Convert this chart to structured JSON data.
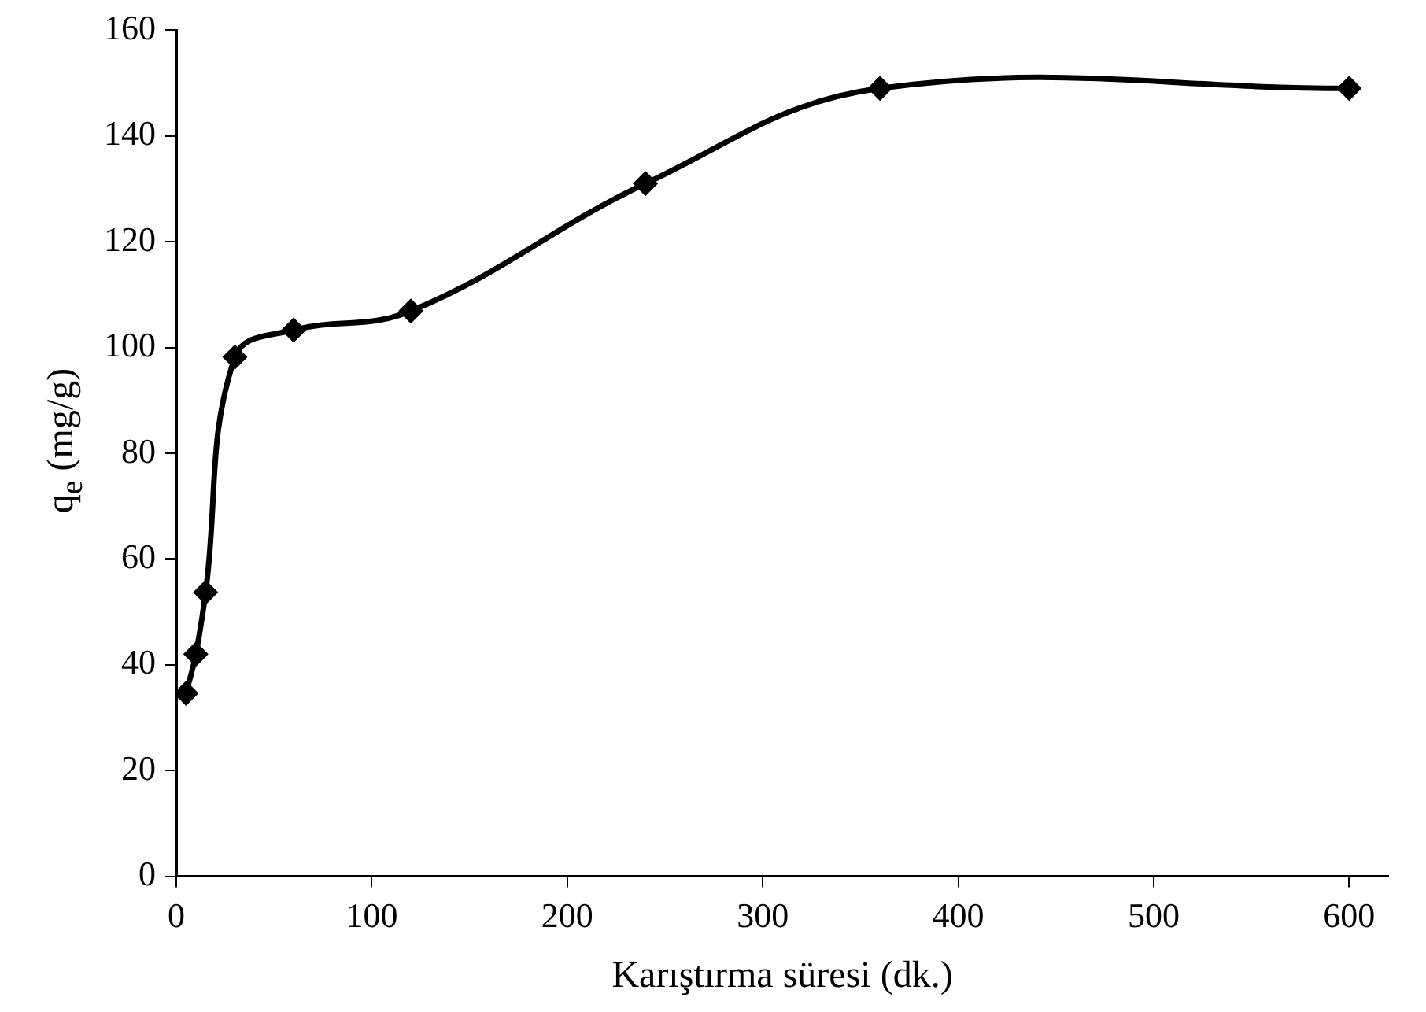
{
  "chart_data": {
    "type": "line",
    "xlabel": "Karıştırma süresi (dk.)",
    "ylabel": "q$_{e}$ (mg/g)",
    "x": [
      5,
      10,
      15,
      30,
      60,
      120,
      240,
      360,
      600
    ],
    "series": [
      {
        "color": "#000000",
        "values": [
          34.6,
          42,
          53.7,
          98.2,
          103.3,
          106.9,
          131,
          149,
          149
        ]
      }
    ],
    "xlim": [
      0,
      620
    ],
    "xticks": [
      0,
      100,
      200,
      300,
      400,
      500,
      600
    ],
    "ylim": [
      0,
      160
    ],
    "yticks": [
      0,
      20,
      40,
      60,
      80,
      100,
      120,
      140,
      160
    ],
    "grid": false,
    "legend": false,
    "marker": "diamond",
    "line_style": "solid"
  }
}
